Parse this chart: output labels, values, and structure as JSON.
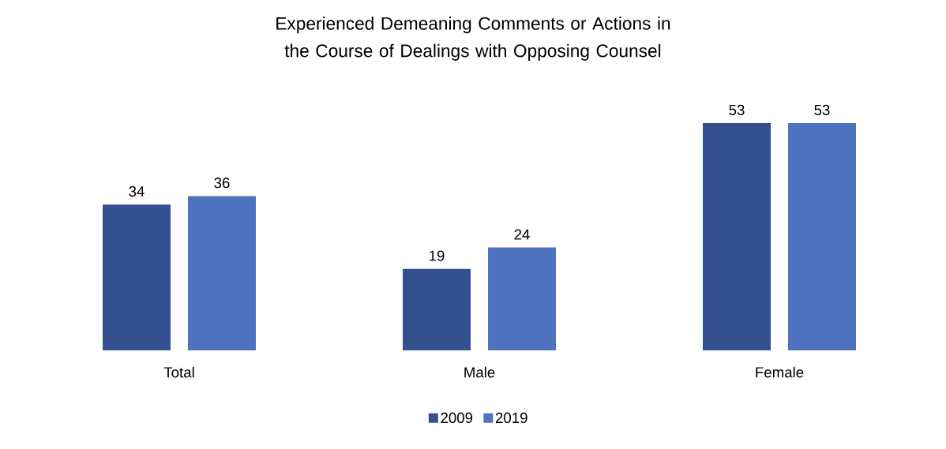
{
  "chart_data": {
    "type": "bar",
    "title": "Experienced Demeaning Comments or Actions in the Course of Dealings with Opposing Counsel",
    "categories": [
      "Total",
      "Male",
      "Female"
    ],
    "series": [
      {
        "name": "2009",
        "color": "#34508f",
        "values": [
          34,
          19,
          53
        ]
      },
      {
        "name": "2019",
        "color": "#4f72bf",
        "values": [
          36,
          24,
          53
        ]
      }
    ],
    "data_labels": true,
    "legend": "bottom"
  }
}
